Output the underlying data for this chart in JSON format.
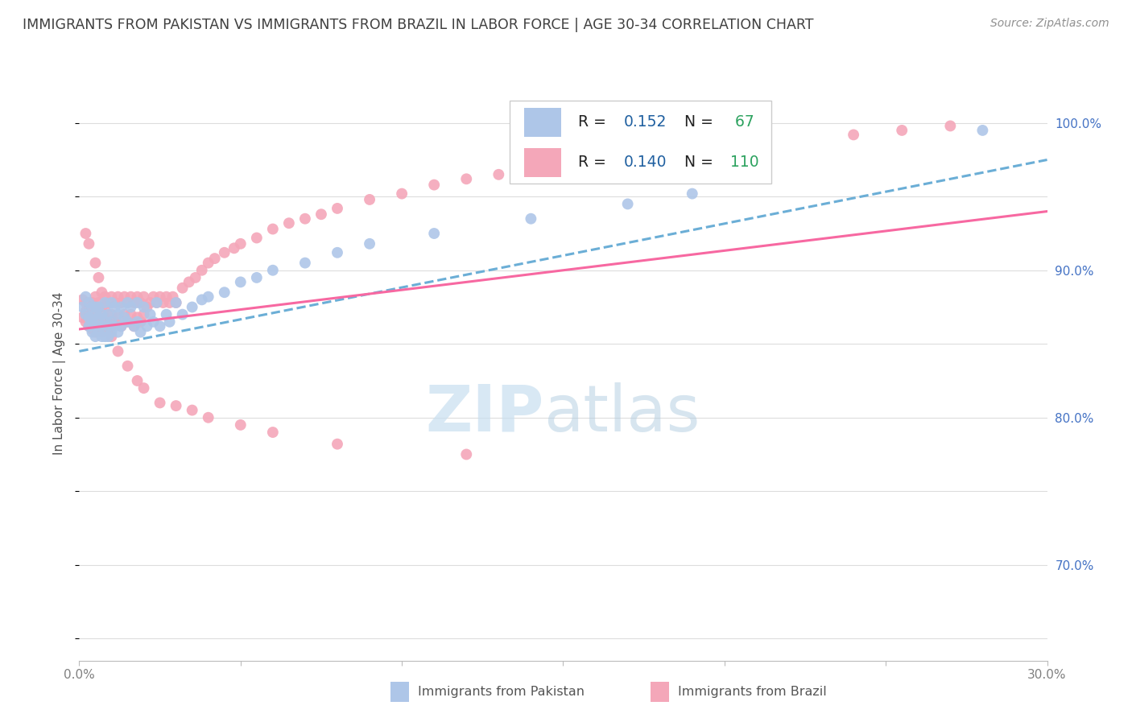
{
  "title": "IMMIGRANTS FROM PAKISTAN VS IMMIGRANTS FROM BRAZIL IN LABOR FORCE | AGE 30-34 CORRELATION CHART",
  "source": "Source: ZipAtlas.com",
  "ylabel": "In Labor Force | Age 30-34",
  "xlim": [
    0.0,
    0.3
  ],
  "ylim": [
    0.635,
    1.025
  ],
  "xticks": [
    0.0,
    0.05,
    0.1,
    0.15,
    0.2,
    0.25,
    0.3
  ],
  "xticklabels": [
    "0.0%",
    "",
    "",
    "",
    "",
    "",
    "30.0%"
  ],
  "yticks_right": [
    0.7,
    0.8,
    0.9,
    1.0
  ],
  "yticklabels_right": [
    "70.0%",
    "80.0%",
    "90.0%",
    "100.0%"
  ],
  "pakistan_color": "#aec6e8",
  "brazil_color": "#f4a7b9",
  "pakistan_line_color": "#6baed6",
  "brazil_line_color": "#f768a1",
  "pakistan_line_x0": 0.0,
  "pakistan_line_y0": 0.845,
  "pakistan_line_x1": 0.3,
  "pakistan_line_y1": 0.975,
  "brazil_line_x0": 0.0,
  "brazil_line_y0": 0.86,
  "brazil_line_x1": 0.3,
  "brazil_line_y1": 0.94,
  "R_pakistan": "0.152",
  "N_pakistan": " 67",
  "R_brazil": "0.140",
  "N_brazil": "110",
  "legend_R_color": "#2060a0",
  "legend_N_color": "#2ca25f",
  "watermark_zip_color": "#c8dff0",
  "watermark_atlas_color": "#b0cce0",
  "grid_color": "#dddddd",
  "title_color": "#404040",
  "source_color": "#909090",
  "ylabel_color": "#505050",
  "tick_color": "#4472c4",
  "xtick_color": "#808080",
  "pakistan_x": [
    0.001,
    0.002,
    0.002,
    0.003,
    0.003,
    0.003,
    0.004,
    0.004,
    0.004,
    0.005,
    0.005,
    0.005,
    0.005,
    0.006,
    0.006,
    0.006,
    0.007,
    0.007,
    0.007,
    0.008,
    0.008,
    0.008,
    0.009,
    0.009,
    0.009,
    0.01,
    0.01,
    0.01,
    0.011,
    0.011,
    0.012,
    0.012,
    0.013,
    0.013,
    0.014,
    0.015,
    0.015,
    0.016,
    0.017,
    0.018,
    0.018,
    0.019,
    0.02,
    0.021,
    0.022,
    0.023,
    0.024,
    0.025,
    0.027,
    0.028,
    0.03,
    0.032,
    0.035,
    0.038,
    0.04,
    0.045,
    0.05,
    0.055,
    0.06,
    0.07,
    0.08,
    0.09,
    0.11,
    0.14,
    0.17,
    0.19,
    0.28
  ],
  "pakistan_y": [
    0.875,
    0.87,
    0.882,
    0.862,
    0.878,
    0.868,
    0.875,
    0.865,
    0.858,
    0.87,
    0.855,
    0.862,
    0.875,
    0.858,
    0.868,
    0.875,
    0.87,
    0.862,
    0.855,
    0.878,
    0.865,
    0.855,
    0.87,
    0.862,
    0.855,
    0.878,
    0.865,
    0.858,
    0.875,
    0.862,
    0.87,
    0.858,
    0.875,
    0.862,
    0.868,
    0.878,
    0.865,
    0.875,
    0.862,
    0.878,
    0.865,
    0.858,
    0.875,
    0.862,
    0.87,
    0.865,
    0.878,
    0.862,
    0.87,
    0.865,
    0.878,
    0.87,
    0.875,
    0.88,
    0.882,
    0.885,
    0.892,
    0.895,
    0.9,
    0.905,
    0.912,
    0.918,
    0.925,
    0.935,
    0.945,
    0.952,
    0.995
  ],
  "brazil_x": [
    0.001,
    0.001,
    0.002,
    0.002,
    0.002,
    0.003,
    0.003,
    0.003,
    0.004,
    0.004,
    0.004,
    0.005,
    0.005,
    0.005,
    0.005,
    0.006,
    0.006,
    0.006,
    0.007,
    0.007,
    0.007,
    0.008,
    0.008,
    0.008,
    0.009,
    0.009,
    0.009,
    0.01,
    0.01,
    0.01,
    0.011,
    0.011,
    0.012,
    0.012,
    0.013,
    0.013,
    0.014,
    0.014,
    0.015,
    0.015,
    0.016,
    0.016,
    0.017,
    0.017,
    0.018,
    0.018,
    0.019,
    0.019,
    0.02,
    0.02,
    0.021,
    0.022,
    0.023,
    0.024,
    0.025,
    0.026,
    0.027,
    0.028,
    0.029,
    0.03,
    0.032,
    0.034,
    0.036,
    0.038,
    0.04,
    0.042,
    0.045,
    0.048,
    0.05,
    0.055,
    0.06,
    0.065,
    0.07,
    0.075,
    0.08,
    0.09,
    0.1,
    0.11,
    0.12,
    0.13,
    0.14,
    0.15,
    0.16,
    0.17,
    0.185,
    0.2,
    0.21,
    0.24,
    0.255,
    0.27,
    0.002,
    0.003,
    0.005,
    0.006,
    0.007,
    0.008,
    0.009,
    0.01,
    0.012,
    0.015,
    0.018,
    0.02,
    0.025,
    0.03,
    0.035,
    0.04,
    0.05,
    0.06,
    0.08,
    0.12
  ],
  "brazil_y": [
    0.88,
    0.868,
    0.878,
    0.865,
    0.872,
    0.875,
    0.862,
    0.87,
    0.878,
    0.865,
    0.86,
    0.882,
    0.87,
    0.858,
    0.875,
    0.868,
    0.878,
    0.862,
    0.875,
    0.865,
    0.858,
    0.882,
    0.868,
    0.862,
    0.878,
    0.865,
    0.858,
    0.882,
    0.87,
    0.862,
    0.878,
    0.865,
    0.882,
    0.868,
    0.878,
    0.862,
    0.882,
    0.87,
    0.878,
    0.865,
    0.882,
    0.87,
    0.878,
    0.862,
    0.882,
    0.868,
    0.878,
    0.865,
    0.882,
    0.87,
    0.875,
    0.878,
    0.882,
    0.878,
    0.882,
    0.878,
    0.882,
    0.878,
    0.882,
    0.878,
    0.888,
    0.892,
    0.895,
    0.9,
    0.905,
    0.908,
    0.912,
    0.915,
    0.918,
    0.922,
    0.928,
    0.932,
    0.935,
    0.938,
    0.942,
    0.948,
    0.952,
    0.958,
    0.962,
    0.965,
    0.968,
    0.972,
    0.975,
    0.978,
    0.982,
    0.985,
    0.988,
    0.992,
    0.995,
    0.998,
    0.925,
    0.918,
    0.905,
    0.895,
    0.885,
    0.875,
    0.862,
    0.855,
    0.845,
    0.835,
    0.825,
    0.82,
    0.81,
    0.808,
    0.805,
    0.8,
    0.795,
    0.79,
    0.782,
    0.775
  ]
}
